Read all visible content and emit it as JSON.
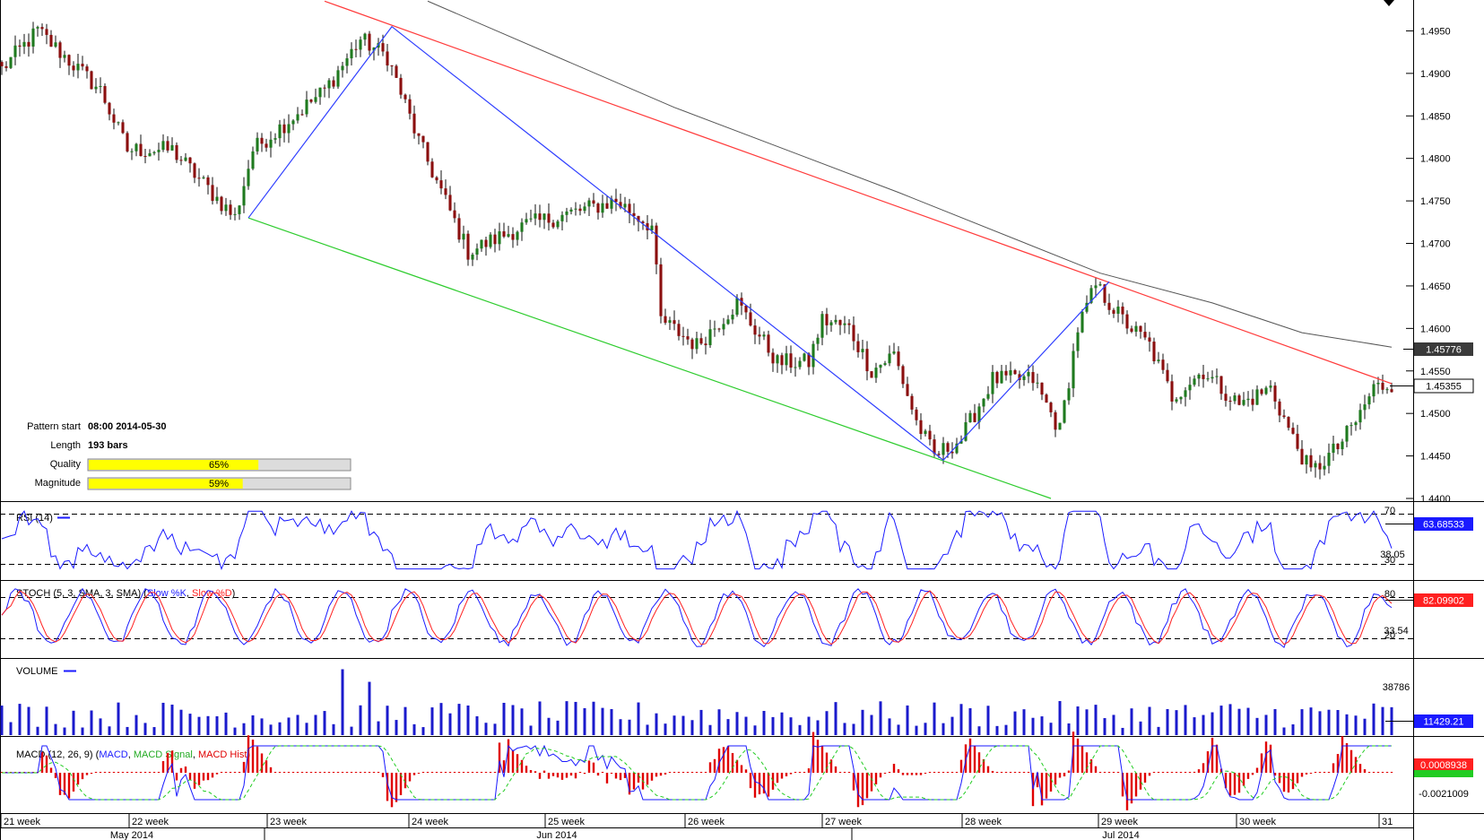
{
  "pattern_info": {
    "rows": [
      {
        "label": "Pattern start",
        "value": "08:00 2014-05-30"
      },
      {
        "label": "Length",
        "value": "193 bars"
      }
    ],
    "bars": [
      {
        "label": "Quality",
        "text": "65%",
        "value": 65
      },
      {
        "label": "Magnitude",
        "text": "59%",
        "value": 59
      }
    ]
  },
  "price_axis": {
    "ticks": [
      "1.4950",
      "1.4900",
      "1.4850",
      "1.4800",
      "1.4750",
      "1.4700",
      "1.4650",
      "1.4600",
      "1.4550",
      "1.4500",
      "1.4450",
      "1.4400"
    ],
    "ma_badge": "1.45776",
    "last_badge": "1.45355"
  },
  "indicators": {
    "rsi": {
      "title": "RSI (14)",
      "levels": [
        "70",
        "30"
      ],
      "value_label": "38.05",
      "last_badge": "63.68533"
    },
    "stoch": {
      "title_prefix": "STOCH (5, 3, SMA, 3, SMA) (",
      "k_name": "Slow %K",
      "sep": ", ",
      "d_name": "Slow %D",
      "suffix": ")",
      "levels": [
        "80",
        "20"
      ],
      "value_label": "33.54",
      "last_badge": "82.09902"
    },
    "volume": {
      "title": "VOLUME",
      "value_label": "38786",
      "last_badge": "11429.21"
    },
    "macd": {
      "title_prefix": "MACD (12, 26, 9) (",
      "macd_name": "MACD",
      "sep1": ", ",
      "signal_name": "MACD Signal",
      "sep2": ", ",
      "hist_name": "MACD Hist",
      "suffix": ")",
      "last_badge": "0.0008938",
      "low_label": "-0.0021009"
    }
  },
  "time_axis": {
    "weeks": [
      "21 week",
      "22 week",
      "23 week",
      "24 week",
      "25 week",
      "26 week",
      "27 week",
      "28 week",
      "29 week",
      "30 week",
      "31"
    ],
    "months": [
      "May 2014",
      "Jun 2014",
      "Jul 2014"
    ]
  },
  "colors": {
    "bull": "#1f7a1f",
    "bear": "#8b0f0f",
    "resistance": "#ff3b3b",
    "support": "#2ecc2e",
    "zigzag": "#2f3fff",
    "ma": "#555555",
    "rsi": "#1a1aff",
    "stoch_k": "#1a1aff",
    "stoch_d": "#ff2020",
    "volume": "#1a1acc",
    "macd": "#1a1aff",
    "signal": "#22cc22",
    "hist": "#e00000",
    "quality_fill": "#ffff00"
  },
  "chart_data": {
    "type": "candlestick",
    "instrument_note": "",
    "y_range": [
      1.44,
      1.498
    ],
    "anchors": [
      {
        "bar": 0,
        "price": 1.4905
      },
      {
        "bar": 8,
        "price": 1.495
      },
      {
        "bar": 22,
        "price": 1.488
      },
      {
        "bar": 28,
        "price": 1.481
      },
      {
        "bar": 38,
        "price": 1.481
      },
      {
        "bar": 52,
        "price": 1.473
      },
      {
        "bar": 56,
        "price": 1.481
      },
      {
        "bar": 72,
        "price": 1.488
      },
      {
        "bar": 80,
        "price": 1.494
      },
      {
        "bar": 86,
        "price": 1.492
      },
      {
        "bar": 93,
        "price": 1.482
      },
      {
        "bar": 104,
        "price": 1.469
      },
      {
        "bar": 116,
        "price": 1.472
      },
      {
        "bar": 123,
        "price": 1.473
      },
      {
        "bar": 137,
        "price": 1.475
      },
      {
        "bar": 145,
        "price": 1.472
      },
      {
        "bar": 147,
        "price": 1.461
      },
      {
        "bar": 155,
        "price": 1.458
      },
      {
        "bar": 164,
        "price": 1.463
      },
      {
        "bar": 173,
        "price": 1.456
      },
      {
        "bar": 180,
        "price": 1.456
      },
      {
        "bar": 183,
        "price": 1.461
      },
      {
        "bar": 189,
        "price": 1.46
      },
      {
        "bar": 194,
        "price": 1.455
      },
      {
        "bar": 199,
        "price": 1.457
      },
      {
        "bar": 204,
        "price": 1.449
      },
      {
        "bar": 208,
        "price": 1.445
      },
      {
        "bar": 214,
        "price": 1.447
      },
      {
        "bar": 221,
        "price": 1.454
      },
      {
        "bar": 230,
        "price": 1.454
      },
      {
        "bar": 236,
        "price": 1.448
      },
      {
        "bar": 240,
        "price": 1.46
      },
      {
        "bar": 244,
        "price": 1.465
      },
      {
        "bar": 250,
        "price": 1.461
      },
      {
        "bar": 256,
        "price": 1.458
      },
      {
        "bar": 261,
        "price": 1.452
      },
      {
        "bar": 268,
        "price": 1.455
      },
      {
        "bar": 276,
        "price": 1.451
      },
      {
        "bar": 283,
        "price": 1.453
      },
      {
        "bar": 288,
        "price": 1.447
      },
      {
        "bar": 292,
        "price": 1.443
      },
      {
        "bar": 298,
        "price": 1.446
      },
      {
        "bar": 302,
        "price": 1.449
      },
      {
        "bar": 306,
        "price": 1.453
      },
      {
        "bar": 310,
        "price": 1.4535
      }
    ],
    "n_bars": 311,
    "pattern_lines": {
      "resistance": [
        {
          "bar": 72,
          "price": 1.4985
        },
        {
          "bar": 310,
          "price": 1.4535
        }
      ],
      "support": [
        {
          "bar": 55,
          "price": 1.473
        },
        {
          "bar": 234,
          "price": 1.44
        }
      ],
      "zigzag": [
        {
          "bar": 55,
          "price": 1.473
        },
        {
          "bar": 87,
          "price": 1.4955
        },
        {
          "bar": 210,
          "price": 1.4445
        },
        {
          "bar": 247,
          "price": 1.4655
        }
      ]
    },
    "moving_average": [
      {
        "bar": 95,
        "price": 1.4985
      },
      {
        "bar": 150,
        "price": 1.486
      },
      {
        "bar": 200,
        "price": 1.476
      },
      {
        "bar": 245,
        "price": 1.4665
      },
      {
        "bar": 270,
        "price": 1.463
      },
      {
        "bar": 290,
        "price": 1.4595
      },
      {
        "bar": 310,
        "price": 1.4578
      }
    ]
  }
}
